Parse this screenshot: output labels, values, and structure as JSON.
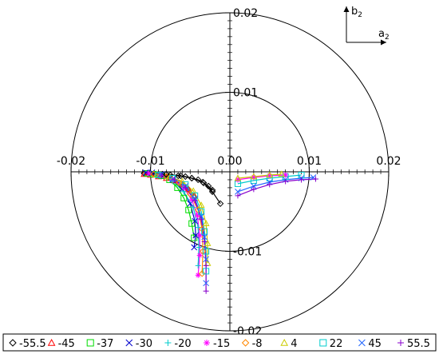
{
  "chart_data": {
    "type": "scatter",
    "projection": "polar-offset",
    "rings": [
      0.01,
      0.02
    ],
    "x_ticks": [
      -0.02,
      -0.01,
      0.0,
      0.01,
      0.02
    ],
    "y_ticks": [
      0.02,
      0.01,
      0.0,
      -0.01,
      -0.02
    ],
    "x_tick_labels": [
      "-0.02",
      "-0.01",
      "0.00",
      "0.01",
      "0.02"
    ],
    "y_tick_labels": [
      "0.02",
      "0.01",
      "0.00",
      "-0.01",
      "-0.02"
    ],
    "axis_indicator": {
      "x_label": "a",
      "x_sub": "2",
      "y_label": "b",
      "y_sub": "2"
    },
    "grid": false,
    "legend_position": "bottom",
    "series": [
      {
        "name": "-55.5",
        "marker": "diamond",
        "color": "#000000",
        "points": [
          [
            -0.0022,
            -0.0023
          ],
          [
            -0.0027,
            -0.0018
          ],
          [
            -0.0033,
            -0.0014
          ],
          [
            -0.004,
            -0.001
          ],
          [
            -0.0048,
            -0.0008
          ],
          [
            -0.0056,
            -0.0006
          ],
          [
            -0.0065,
            -0.0005
          ],
          [
            -0.0075,
            -0.0004
          ],
          [
            -0.0085,
            -0.0003
          ],
          [
            -0.0093,
            -0.0003
          ],
          [
            -0.01,
            -0.0002
          ],
          [
            -0.0108,
            -0.0002
          ]
        ]
      },
      {
        "name": "-45",
        "marker": "triangle",
        "color": "#ff0000",
        "points": [
          [
            -0.0045,
            -0.003
          ],
          [
            -0.0052,
            -0.0022
          ],
          [
            -0.006,
            -0.0016
          ],
          [
            -0.007,
            -0.0011
          ],
          [
            -0.008,
            -0.0008
          ],
          [
            -0.009,
            -0.0006
          ],
          [
            -0.01,
            -0.0004
          ],
          [
            -0.0108,
            -0.0003
          ]
        ]
      },
      {
        "name": "-37",
        "marker": "square",
        "color": "#00dd00",
        "points": [
          [
            -0.0045,
            -0.0083
          ],
          [
            -0.0048,
            -0.0065
          ],
          [
            -0.0052,
            -0.0048
          ],
          [
            -0.0058,
            -0.0033
          ],
          [
            -0.0066,
            -0.002
          ],
          [
            -0.0076,
            -0.001
          ],
          [
            -0.0086,
            -0.0005
          ],
          [
            -0.0096,
            -0.0003
          ],
          [
            -0.0104,
            -0.0002
          ]
        ]
      },
      {
        "name": "-30",
        "marker": "x",
        "color": "#0000cc",
        "points": [
          [
            -0.0045,
            -0.0095
          ],
          [
            -0.0043,
            -0.008
          ],
          [
            -0.0044,
            -0.0062
          ],
          [
            -0.005,
            -0.004
          ],
          [
            -0.006,
            -0.0022
          ],
          [
            -0.0072,
            -0.001
          ],
          [
            -0.0086,
            -0.0003
          ],
          [
            -0.0098,
            -0.0001
          ],
          [
            -0.0106,
            -0.0001
          ]
        ]
      },
      {
        "name": "-20",
        "marker": "plus",
        "color": "#00cccc",
        "points": [
          [
            -0.004,
            -0.0118
          ],
          [
            -0.0039,
            -0.0095
          ],
          [
            -0.004,
            -0.007
          ],
          [
            -0.0046,
            -0.0045
          ],
          [
            -0.0058,
            -0.0025
          ],
          [
            -0.0072,
            -0.0012
          ],
          [
            -0.0088,
            -0.0005
          ],
          [
            -0.0102,
            -0.0002
          ]
        ]
      },
      {
        "name": "-15",
        "marker": "asterisk",
        "color": "#ff00ff",
        "points": [
          [
            -0.004,
            -0.013
          ],
          [
            -0.0038,
            -0.0105
          ],
          [
            -0.0038,
            -0.008
          ],
          [
            -0.0041,
            -0.0055
          ],
          [
            -0.0048,
            -0.0035
          ],
          [
            -0.0058,
            -0.002
          ],
          [
            -0.0072,
            -0.001
          ],
          [
            -0.0088,
            -0.0004
          ],
          [
            -0.0102,
            -0.0002
          ]
        ]
      },
      {
        "name": "-8",
        "marker": "diamond",
        "color": "#ff8800",
        "points": [
          [
            -0.0035,
            -0.0128
          ],
          [
            -0.0034,
            -0.01
          ],
          [
            -0.0035,
            -0.0072
          ],
          [
            -0.004,
            -0.0048
          ],
          [
            -0.005,
            -0.0028
          ],
          [
            -0.0064,
            -0.0014
          ],
          [
            -0.008,
            -0.0006
          ],
          [
            -0.0096,
            -0.0003
          ]
        ]
      },
      {
        "name": "4",
        "marker": "triangle",
        "color": "#cccc00",
        "points": [
          [
            -0.0028,
            -0.0115
          ],
          [
            -0.0028,
            -0.009
          ],
          [
            -0.003,
            -0.0065
          ],
          [
            -0.0036,
            -0.0042
          ],
          [
            -0.0046,
            -0.0024
          ],
          [
            -0.006,
            -0.0012
          ],
          [
            -0.0076,
            -0.0006
          ],
          [
            -0.0092,
            -0.0003
          ]
        ]
      },
      {
        "name": "22",
        "marker": "square",
        "color": "#00cccc",
        "points": [
          [
            -0.003,
            -0.0125
          ],
          [
            -0.003,
            -0.01
          ],
          [
            -0.0032,
            -0.0075
          ],
          [
            -0.0036,
            -0.005
          ],
          [
            -0.0044,
            -0.003
          ],
          [
            -0.0056,
            -0.0016
          ],
          [
            -0.0072,
            -0.0008
          ],
          [
            -0.009,
            -0.0004
          ]
        ]
      },
      {
        "name": "45",
        "marker": "x",
        "color": "#2266ff",
        "points": [
          [
            -0.003,
            -0.014
          ],
          [
            -0.003,
            -0.011
          ],
          [
            -0.0032,
            -0.0082
          ],
          [
            -0.0036,
            -0.0056
          ],
          [
            -0.0044,
            -0.0034
          ],
          [
            -0.0056,
            -0.0018
          ],
          [
            -0.0072,
            -0.0009
          ],
          [
            -0.0088,
            -0.0004
          ]
        ]
      },
      {
        "name": "55.5",
        "marker": "plus",
        "color": "#8800cc",
        "points": [
          [
            -0.003,
            -0.015
          ],
          [
            -0.003,
            -0.0118
          ],
          [
            -0.0032,
            -0.0088
          ],
          [
            -0.0036,
            -0.006
          ],
          [
            -0.0044,
            -0.0036
          ],
          [
            -0.0056,
            -0.002
          ],
          [
            -0.007,
            -0.001
          ],
          [
            -0.0086,
            -0.0005
          ]
        ]
      }
    ],
    "series_overlay": [
      {
        "name": "-55.5",
        "points": [
          [
            -0.0012,
            -0.004
          ],
          [
            -0.0022,
            -0.0025
          ],
          [
            -0.0034,
            -0.0013
          ],
          [
            -0.0048,
            -0.0008
          ],
          [
            -0.0062,
            -0.0005
          ],
          [
            -0.008,
            -0.0003
          ]
        ]
      },
      {
        "name": "22",
        "points": [
          [
            0.001,
            -0.0015
          ],
          [
            0.003,
            -0.0011
          ],
          [
            0.005,
            -0.0008
          ],
          [
            0.007,
            -0.0006
          ],
          [
            0.009,
            -0.0004
          ]
        ]
      },
      {
        "name": "45",
        "points": [
          [
            0.001,
            -0.0025
          ],
          [
            0.003,
            -0.0018
          ],
          [
            0.005,
            -0.0013
          ],
          [
            0.007,
            -0.001
          ],
          [
            0.009,
            -0.0008
          ],
          [
            0.0105,
            -0.0007
          ]
        ]
      },
      {
        "name": "55.5",
        "points": [
          [
            0.001,
            -0.003
          ],
          [
            0.003,
            -0.0022
          ],
          [
            0.005,
            -0.0016
          ],
          [
            0.007,
            -0.0012
          ],
          [
            0.009,
            -0.001
          ],
          [
            0.0108,
            -0.0009
          ]
        ]
      },
      {
        "name": "-15",
        "points": [
          [
            0.001,
            -0.001
          ],
          [
            0.003,
            -0.0007
          ],
          [
            0.005,
            -0.0005
          ],
          [
            0.007,
            -0.0004
          ]
        ]
      },
      {
        "name": "4",
        "points": [
          [
            0.001,
            -0.0008
          ],
          [
            0.003,
            -0.0006
          ],
          [
            0.005,
            -0.0004
          ],
          [
            0.0065,
            -0.0003
          ]
        ]
      }
    ]
  }
}
